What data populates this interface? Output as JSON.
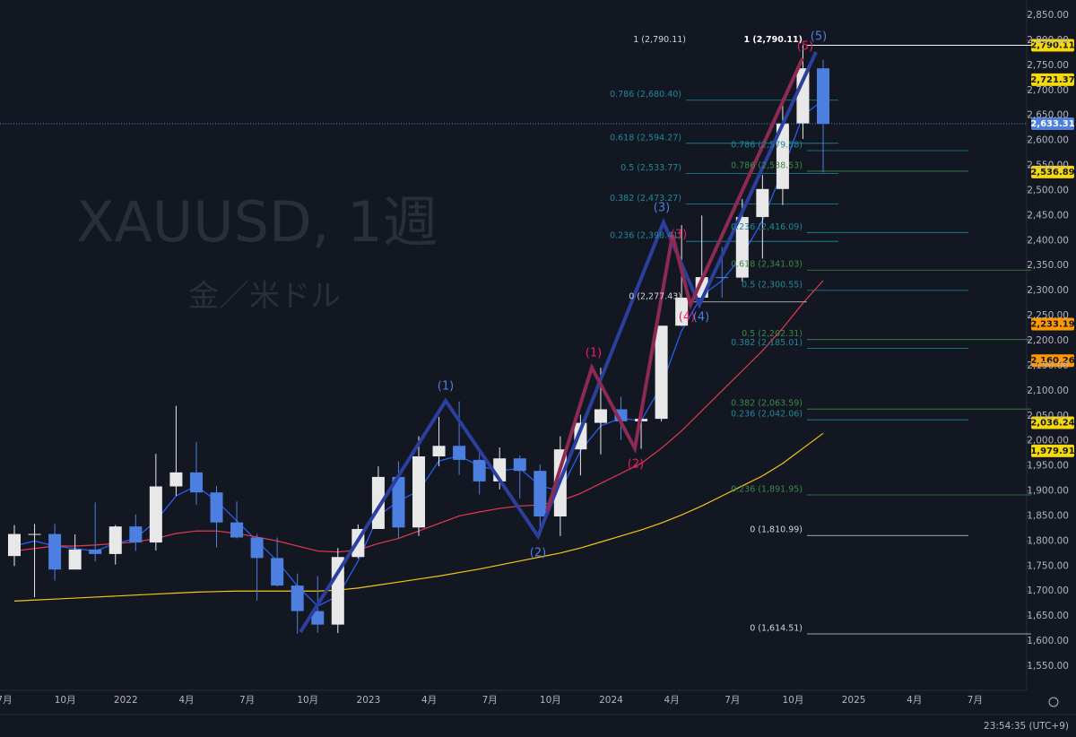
{
  "chart_data": {
    "type": "candlestick",
    "title": "XAUUSD, 1週",
    "subtitle": "金／米ドル",
    "timestamp": "23:54:35 (UTC+9)",
    "x_labels": [
      "7月",
      "10月",
      "2022",
      "4月",
      "7月",
      "10月",
      "2023",
      "4月",
      "7月",
      "10月",
      "2024",
      "4月",
      "7月",
      "10月",
      "2025",
      "4月",
      "7月"
    ],
    "ylim": [
      1550,
      2850
    ],
    "yticks": [
      {
        "value": 1550,
        "label": "1,550.00"
      },
      {
        "value": 1600,
        "label": "1,600.00"
      },
      {
        "value": 1650,
        "label": "1,650.00"
      },
      {
        "value": 1700,
        "label": "1,700.00"
      },
      {
        "value": 1750,
        "label": "1,750.00"
      },
      {
        "value": 1800,
        "label": "1,800.00"
      },
      {
        "value": 1850,
        "label": "1,850.00"
      },
      {
        "value": 1900,
        "label": "1,900.00"
      },
      {
        "value": 1950,
        "label": "1,950.00"
      },
      {
        "value": 2000,
        "label": "2,000.00"
      },
      {
        "value": 2050,
        "label": "2,050.00"
      },
      {
        "value": 2100,
        "label": "2,100.00"
      },
      {
        "value": 2150,
        "label": "2,150.00"
      },
      {
        "value": 2200,
        "label": "2,200.00"
      },
      {
        "value": 2250,
        "label": "2,250.00"
      },
      {
        "value": 2300,
        "label": "2,300.00"
      },
      {
        "value": 2350,
        "label": "2,350.00"
      },
      {
        "value": 2400,
        "label": "2,400.00"
      },
      {
        "value": 2450,
        "label": "2,450.00"
      },
      {
        "value": 2500,
        "label": "2,500.00"
      },
      {
        "value": 2550,
        "label": "2,550.00"
      },
      {
        "value": 2600,
        "label": "2,600.00"
      },
      {
        "value": 2650,
        "label": "2,650.00"
      },
      {
        "value": 2700,
        "label": "2,700.00"
      },
      {
        "value": 2750,
        "label": "2,750.00"
      },
      {
        "value": 2800,
        "label": "2,800.00"
      },
      {
        "value": 2850,
        "label": "2,850.00"
      }
    ],
    "candles": {
      "open": [
        1770,
        1814,
        1814,
        1743,
        1783,
        1774,
        1829,
        1797,
        1909,
        1937,
        1897,
        1837,
        1807,
        1766,
        1711,
        1660,
        1633,
        1768,
        1824,
        1928,
        1827,
        1969,
        1990,
        1962,
        1919,
        1965,
        1940,
        1849,
        1983,
        2036,
        2063,
        2039,
        2044,
        2230,
        2286,
        2327,
        2326,
        2447,
        2503,
        2634,
        2744
      ],
      "high": [
        1832,
        1834,
        1834,
        1813,
        1877,
        1832,
        1853,
        1974,
        2070,
        1998,
        1910,
        1879,
        1814,
        1807,
        1735,
        1730,
        1786,
        1833,
        1949,
        1959,
        2009,
        2048,
        2079,
        1983,
        1987,
        1971,
        1953,
        2009,
        2052,
        2146,
        2088,
        2065,
        2222,
        2431,
        2450,
        2387,
        2483,
        2531,
        2685,
        2790,
        2761
      ],
      "low": [
        1750,
        1688,
        1721,
        1746,
        1759,
        1753,
        1780,
        1781,
        1890,
        1872,
        1787,
        1805,
        1681,
        1709,
        1615,
        1617,
        1616,
        1765,
        1824,
        1805,
        1810,
        1949,
        1932,
        1893,
        1903,
        1885,
        1810,
        1810,
        1931,
        1973,
        2002,
        1984,
        2039,
        2229,
        2277,
        2286,
        2318,
        2364,
        2471,
        2603,
        2536
      ],
      "close": [
        1814,
        1814,
        1743,
        1783,
        1774,
        1829,
        1797,
        1909,
        1937,
        1897,
        1837,
        1807,
        1766,
        1711,
        1660,
        1633,
        1768,
        1824,
        1928,
        1827,
        1969,
        1990,
        1962,
        1919,
        1965,
        1940,
        1849,
        1983,
        2036,
        2063,
        2039,
        2044,
        2230,
        2286,
        2327,
        2326,
        2447,
        2503,
        2634,
        2744,
        2633
      ]
    },
    "up_color": "#e8e8e8",
    "down_color": "#4d7fe0",
    "moving_averages": [
      {
        "color": "#2962ff",
        "values": [
          1790,
          1800,
          1790,
          1785,
          1780,
          1795,
          1805,
          1840,
          1890,
          1910,
          1880,
          1840,
          1800,
          1760,
          1710,
          1670,
          1690,
          1760,
          1850,
          1880,
          1900,
          1960,
          1970,
          1950,
          1940,
          1945,
          1910,
          1900,
          1980,
          2030,
          2045,
          2040,
          2110,
          2220,
          2290,
          2320,
          2370,
          2440,
          2540,
          2650,
          2680
        ]
      },
      {
        "color": "#e53950",
        "values": [
          1780,
          1785,
          1790,
          1790,
          1792,
          1795,
          1798,
          1805,
          1815,
          1820,
          1820,
          1815,
          1808,
          1800,
          1790,
          1780,
          1778,
          1782,
          1795,
          1805,
          1820,
          1835,
          1850,
          1858,
          1865,
          1870,
          1872,
          1880,
          1895,
          1915,
          1935,
          1955,
          1985,
          2020,
          2060,
          2100,
          2140,
          2180,
          2225,
          2275,
          2320
        ]
      },
      {
        "color": "#f5c518",
        "values": [
          1680,
          1682,
          1684,
          1686,
          1688,
          1690,
          1692,
          1694,
          1696,
          1698,
          1699,
          1700,
          1700,
          1700,
          1700,
          1700,
          1702,
          1706,
          1712,
          1718,
          1724,
          1730,
          1737,
          1744,
          1752,
          1760,
          1768,
          1776,
          1786,
          1798,
          1810,
          1822,
          1836,
          1852,
          1870,
          1890,
          1910,
          1930,
          1955,
          1985,
          2015
        ]
      }
    ],
    "last_price": {
      "value": 2633.31,
      "label": "2,633.31"
    },
    "price_badges": [
      {
        "value": 2790.11,
        "label": "2,790.11",
        "color": "#f5d90a"
      },
      {
        "value": 2721.37,
        "label": "2,721.37",
        "color": "#f5d90a"
      },
      {
        "value": 2536.89,
        "label": "2,536.89",
        "color": "#f5d90a"
      },
      {
        "value": 2233.19,
        "label": "2,233.19",
        "color": "#ff9800"
      },
      {
        "value": 2160.26,
        "label": "2,160.26",
        "color": "#ff9800"
      },
      {
        "value": 2036.24,
        "label": "2,036.24",
        "color": "#f5d90a"
      },
      {
        "value": 1979.91,
        "label": "1,979.91",
        "color": "#f5d90a"
      }
    ],
    "fib_levels": [
      {
        "value": 2790.11,
        "label": "1 (2,790.11)",
        "color": "#d1d4dc"
      },
      {
        "value": 2680.4,
        "label": "0.786 (2,680.40)",
        "color": "#1e8a9a"
      },
      {
        "value": 2594.27,
        "label": "0.618 (2,594.27)",
        "color": "#1e8a9a"
      },
      {
        "value": 2533.77,
        "label": "0.5 (2,533.77)",
        "color": "#1e8a9a"
      },
      {
        "value": 2473.27,
        "label": "0.382 (2,473.27)",
        "color": "#1e8a9a"
      },
      {
        "value": 2398.41,
        "label": "0.236 (2,398.41)",
        "color": "#1e8a9a"
      },
      {
        "value": 2277.43,
        "label": "0 (2,277.43)",
        "color": "#d1d4dc"
      },
      {
        "value": 2790.11,
        "label": "1 (2,790.11)",
        "color": "#ffffff"
      },
      {
        "value": 2579.58,
        "label": "0.786 (2,579.58)",
        "color": "#1e8a9a"
      },
      {
        "value": 2538.53,
        "label": "0.786 (2,538.53)",
        "color": "#3a8a4a"
      },
      {
        "value": 2416.09,
        "label": "0.236 (2,416.09)",
        "color": "#1e8a9a"
      },
      {
        "value": 2341.03,
        "label": "0.618 (2,341.03)",
        "color": "#3a8a4a"
      },
      {
        "value": 2300.55,
        "label": "0.5 (2,300.55)",
        "color": "#1e8a9a"
      },
      {
        "value": 2202.31,
        "label": "0.5 (2,202.31)",
        "color": "#3a8a4a"
      },
      {
        "value": 2185.01,
        "label": "0.382 (2,185.01)",
        "color": "#1e8a9a"
      },
      {
        "value": 2063.59,
        "label": "0.382 (2,063.59)",
        "color": "#3a8a4a"
      },
      {
        "value": 2042.06,
        "label": "0.236 (2,042.06)",
        "color": "#1e8a9a"
      },
      {
        "value": 1891.95,
        "label": "0.236 (1,891.95)",
        "color": "#3a8a4a"
      },
      {
        "value": 1810.99,
        "label": "0 (1,810.99)",
        "color": "#d1d4dc"
      },
      {
        "value": 1614.51,
        "label": "0 (1,614.51)",
        "color": "#d1d4dc"
      }
    ],
    "waves": {
      "blue": [
        "(1)",
        "(2)",
        "(3)",
        "(4)",
        "(5)"
      ],
      "red": [
        "(1)",
        "(2)",
        "(3)",
        "(4)",
        "(5)"
      ]
    }
  }
}
